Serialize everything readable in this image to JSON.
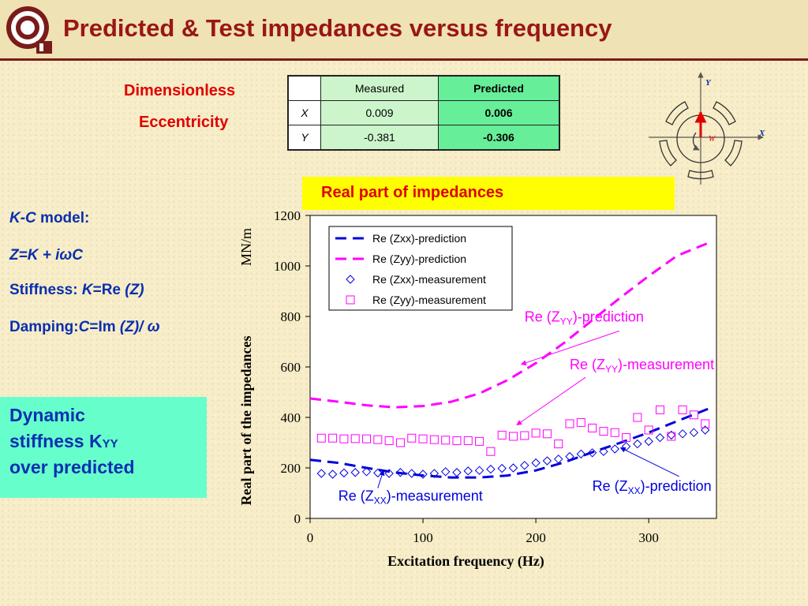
{
  "header": {
    "title": "Predicted & Test impedances versus frequency"
  },
  "labels": {
    "dimensionless": "Dimensionless",
    "eccentricity": "Eccentricity"
  },
  "table": {
    "header": [
      "",
      "Measured",
      "Predicted"
    ],
    "rows": [
      {
        "axis": "X",
        "measured": "0.009",
        "predicted": "0.006"
      },
      {
        "axis": "Y",
        "measured": "-0.381",
        "predicted": "-0.306"
      }
    ]
  },
  "bearing": {
    "y_label": "Y",
    "x_label": "X",
    "w_label": "W"
  },
  "banner": "Real part of impedances",
  "model": {
    "kc_italic": "K-C",
    "kc_rest": " model:",
    "z_eq": "Z=K + iωC",
    "stiff_pre": "Stiffness: ",
    "stiff_k": "K",
    "stiff_eq": "=Re ",
    "stiff_z": "(Z)",
    "damp_pre": "Damping:",
    "damp_c": "C",
    "damp_eq": "=Im ",
    "damp_z": "(Z)/ ω"
  },
  "callout": {
    "line1": "Dynamic",
    "line2a": "stiffness K",
    "line2b": "YY",
    "line3": "over predicted"
  },
  "colors": {
    "blue": "#0000dd",
    "magenta": "#ff00ff",
    "title_red": "#9a1616"
  },
  "chart_data": {
    "type": "line",
    "ylabel": "Real part of the impedances",
    "yunit": "MN/m",
    "xlabel": "Excitation frequency (Hz)",
    "xlim": [
      0,
      360
    ],
    "ylim": [
      0,
      1200
    ],
    "xticks": [
      0,
      100,
      200,
      300
    ],
    "yticks": [
      0,
      200,
      400,
      600,
      800,
      1000,
      1200
    ],
    "legend_position": "top-right",
    "series": [
      {
        "name": "Re (Zxx)-prediction",
        "style": "dashed-line",
        "color": "#0000dd",
        "x": [
          0,
          25,
          50,
          75,
          100,
          125,
          150,
          175,
          200,
          225,
          250,
          275,
          300,
          325,
          355
        ],
        "y": [
          232,
          220,
          200,
          182,
          170,
          162,
          162,
          170,
          190,
          222,
          262,
          300,
          340,
          385,
          438
        ]
      },
      {
        "name": "Re (Zyy)-prediction",
        "style": "dashed-line",
        "color": "#ff00ff",
        "x": [
          0,
          25,
          50,
          75,
          100,
          125,
          150,
          175,
          200,
          225,
          250,
          275,
          300,
          325,
          355
        ],
        "y": [
          475,
          462,
          448,
          440,
          445,
          462,
          495,
          548,
          615,
          695,
          785,
          875,
          960,
          1040,
          1095
        ]
      },
      {
        "name": "Re (Zxx)-measurement",
        "style": "diamond",
        "color": "#0000dd",
        "x": [
          10,
          20,
          30,
          40,
          50,
          60,
          70,
          80,
          90,
          100,
          110,
          120,
          130,
          140,
          150,
          160,
          170,
          180,
          190,
          200,
          210,
          220,
          230,
          240,
          250,
          260,
          270,
          280,
          290,
          300,
          310,
          320,
          330,
          340,
          350
        ],
        "y": [
          178,
          175,
          180,
          182,
          185,
          180,
          178,
          182,
          178,
          175,
          178,
          185,
          182,
          188,
          190,
          195,
          198,
          200,
          210,
          220,
          228,
          235,
          245,
          255,
          260,
          265,
          275,
          285,
          295,
          305,
          320,
          330,
          335,
          340,
          350
        ]
      },
      {
        "name": "Re (Zyy)-measurement",
        "style": "square",
        "color": "#ff00ff",
        "x": [
          10,
          20,
          30,
          40,
          50,
          60,
          70,
          80,
          90,
          100,
          110,
          120,
          130,
          140,
          150,
          160,
          170,
          180,
          190,
          200,
          210,
          220,
          230,
          240,
          250,
          260,
          270,
          280,
          290,
          300,
          310,
          320,
          330,
          340,
          350
        ],
        "y": [
          318,
          318,
          315,
          316,
          315,
          312,
          308,
          300,
          318,
          315,
          312,
          310,
          308,
          308,
          305,
          265,
          330,
          325,
          328,
          338,
          335,
          295,
          375,
          380,
          358,
          345,
          340,
          320,
          400,
          350,
          430,
          325,
          430,
          410,
          375
        ]
      }
    ],
    "annotations": [
      {
        "text_main": "Re (Z",
        "text_sub": "YY",
        "text_tail": ")-prediction",
        "color": "#ff00ff",
        "at": [
          190,
          780
        ],
        "arrow_to": [
          187,
          610
        ]
      },
      {
        "text_main": "Re (Z",
        "text_sub": "YY",
        "text_tail": ")-measurement",
        "color": "#ff00ff",
        "at": [
          230,
          590
        ],
        "arrow_to": [
          183,
          370
        ]
      },
      {
        "text_main": "Re (Z",
        "text_sub": "XX",
        "text_tail": ")-prediction",
        "color": "#0000dd",
        "at": [
          250,
          110
        ],
        "arrow_to": [
          275,
          280
        ]
      },
      {
        "text_main": "Re (Z",
        "text_sub": "XX",
        "text_tail": ")-measurement",
        "color": "#0000dd",
        "at": [
          25,
          70
        ],
        "arrow_to": [
          65,
          190
        ]
      }
    ]
  }
}
